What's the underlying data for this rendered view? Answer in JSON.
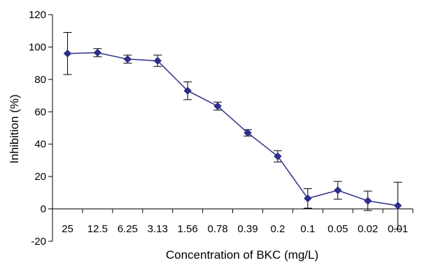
{
  "chart_data": {
    "type": "line",
    "title": "",
    "xlabel": "Concentration of BKC (mg/L)",
    "ylabel": "Inhibition (%)",
    "ylim": [
      -20,
      120
    ],
    "yticks": [
      "-20",
      "0",
      "20",
      "40",
      "60",
      "80",
      "100",
      "120"
    ],
    "categories": [
      "25",
      "12.5",
      "6.25",
      "3.13",
      "1.56",
      "0.78",
      "0.39",
      "0.2",
      "0.1",
      "0.05",
      "0.02",
      "0.01"
    ],
    "series": [
      {
        "values": [
          96,
          96.5,
          92.5,
          91.5,
          73,
          63.5,
          47,
          32.5,
          6.5,
          11.5,
          5,
          2
        ],
        "error": [
          13,
          2.5,
          2.5,
          3.5,
          5.5,
          2.5,
          2,
          3.5,
          6,
          5.5,
          6,
          14.5
        ]
      }
    ],
    "grid": false,
    "marker": "diamond",
    "color": "#2e2e8c"
  }
}
